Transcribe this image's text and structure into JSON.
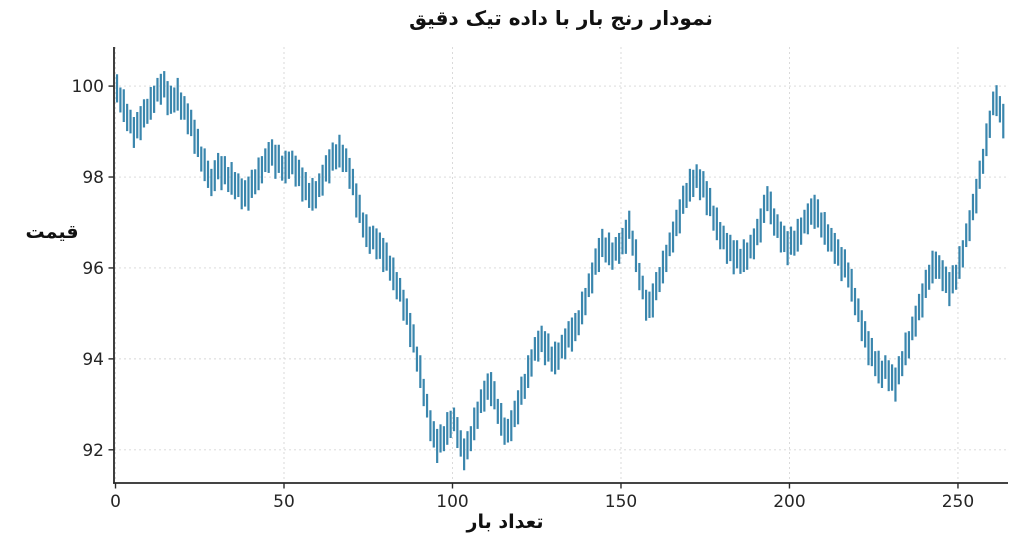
{
  "chart_data": {
    "type": "bar",
    "subtype": "high-low-range-bars",
    "title": "نمودار رنج بار با داده تیک دقیق",
    "xlabel": "تعداد بار",
    "ylabel": "قیمت",
    "bar_color": "#3a86ad",
    "axis_color": "#2a2a2a",
    "grid_color": "#d6d6d6",
    "text_color": "#252525",
    "grid": true,
    "legend": "none",
    "xlim": [
      -0.45,
      264.85
    ],
    "ylim": [
      91.27,
      100.86
    ],
    "x_ticks": [
      0,
      50,
      100,
      150,
      200,
      250
    ],
    "y_ticks": [
      92,
      94,
      96,
      98,
      100
    ],
    "bars": [
      [
        99.64,
        100.26
      ],
      [
        99.42,
        99.97
      ],
      [
        99.21,
        99.93
      ],
      [
        99.01,
        99.61
      ],
      [
        98.96,
        99.48
      ],
      [
        98.64,
        99.32
      ],
      [
        98.85,
        99.43
      ],
      [
        98.81,
        99.56
      ],
      [
        99.09,
        99.71
      ],
      [
        99.17,
        99.72
      ],
      [
        99.26,
        99.98
      ],
      [
        99.41,
        100.01
      ],
      [
        99.66,
        100.18
      ],
      [
        99.59,
        100.27
      ],
      [
        99.75,
        100.33
      ],
      [
        99.36,
        100.11
      ],
      [
        99.39,
        100.01
      ],
      [
        99.42,
        99.97
      ],
      [
        99.46,
        100.18
      ],
      [
        99.26,
        99.86
      ],
      [
        99.26,
        99.78
      ],
      [
        98.94,
        99.62
      ],
      [
        98.9,
        99.48
      ],
      [
        98.51,
        99.26
      ],
      [
        98.44,
        99.06
      ],
      [
        98.12,
        98.67
      ],
      [
        97.91,
        98.63
      ],
      [
        97.76,
        98.36
      ],
      [
        97.58,
        98.18
      ],
      [
        97.69,
        98.37
      ],
      [
        97.95,
        98.53
      ],
      [
        97.71,
        98.46
      ],
      [
        97.84,
        98.46
      ],
      [
        97.67,
        98.22
      ],
      [
        97.61,
        98.33
      ],
      [
        97.51,
        98.11
      ],
      [
        97.56,
        98.08
      ],
      [
        97.29,
        97.97
      ],
      [
        97.35,
        97.93
      ],
      [
        97.26,
        98.01
      ],
      [
        97.54,
        98.16
      ],
      [
        97.62,
        98.17
      ],
      [
        97.71,
        98.43
      ],
      [
        97.86,
        98.46
      ],
      [
        98.11,
        98.63
      ],
      [
        98.09,
        98.77
      ],
      [
        98.25,
        98.83
      ],
      [
        97.96,
        98.71
      ],
      [
        98.09,
        98.71
      ],
      [
        97.92,
        98.47
      ],
      [
        97.86,
        98.58
      ],
      [
        97.96,
        98.56
      ],
      [
        98.06,
        98.58
      ],
      [
        97.79,
        98.47
      ],
      [
        97.8,
        98.38
      ],
      [
        97.46,
        98.21
      ],
      [
        97.49,
        98.11
      ],
      [
        97.32,
        97.87
      ],
      [
        97.26,
        97.98
      ],
      [
        97.31,
        97.91
      ],
      [
        97.56,
        98.08
      ],
      [
        97.59,
        98.27
      ],
      [
        97.9,
        98.48
      ],
      [
        97.86,
        98.61
      ],
      [
        98.14,
        98.76
      ],
      [
        98.17,
        98.72
      ],
      [
        98.21,
        98.93
      ],
      [
        98.11,
        98.71
      ],
      [
        98.11,
        98.63
      ],
      [
        97.74,
        98.42
      ],
      [
        97.6,
        98.18
      ],
      [
        97.11,
        97.86
      ],
      [
        96.99,
        97.61
      ],
      [
        96.67,
        97.22
      ],
      [
        96.46,
        97.18
      ],
      [
        96.31,
        96.91
      ],
      [
        96.41,
        96.93
      ],
      [
        96.19,
        96.87
      ],
      [
        96.2,
        96.78
      ],
      [
        95.91,
        96.66
      ],
      [
        95.94,
        96.56
      ],
      [
        95.72,
        96.27
      ],
      [
        95.51,
        96.23
      ],
      [
        95.31,
        95.91
      ],
      [
        95.26,
        95.78
      ],
      [
        94.84,
        95.52
      ],
      [
        94.75,
        95.33
      ],
      [
        94.26,
        95.01
      ],
      [
        94.14,
        94.76
      ],
      [
        93.72,
        94.27
      ],
      [
        93.36,
        94.08
      ],
      [
        92.96,
        93.56
      ],
      [
        92.71,
        93.23
      ],
      [
        92.19,
        92.87
      ],
      [
        92.05,
        92.63
      ],
      [
        91.71,
        92.46
      ],
      [
        91.94,
        92.56
      ],
      [
        91.97,
        92.52
      ],
      [
        92.11,
        92.83
      ],
      [
        92.26,
        92.86
      ],
      [
        92.41,
        92.93
      ],
      [
        92.04,
        92.72
      ],
      [
        91.85,
        92.43
      ],
      [
        91.55,
        92.25
      ],
      [
        91.79,
        92.41
      ],
      [
        91.97,
        92.52
      ],
      [
        92.21,
        92.93
      ],
      [
        92.46,
        93.06
      ],
      [
        92.81,
        93.33
      ],
      [
        92.84,
        93.52
      ],
      [
        93.1,
        93.68
      ],
      [
        92.96,
        93.71
      ],
      [
        92.89,
        93.51
      ],
      [
        92.57,
        93.12
      ],
      [
        92.31,
        93.03
      ],
      [
        92.11,
        92.71
      ],
      [
        92.16,
        92.68
      ],
      [
        92.19,
        92.87
      ],
      [
        92.5,
        93.08
      ],
      [
        92.56,
        93.31
      ],
      [
        92.99,
        93.61
      ],
      [
        93.12,
        93.67
      ],
      [
        93.36,
        94.08
      ],
      [
        93.61,
        94.21
      ],
      [
        93.96,
        94.48
      ],
      [
        93.94,
        94.62
      ],
      [
        94.15,
        94.73
      ],
      [
        93.86,
        94.61
      ],
      [
        93.94,
        94.56
      ],
      [
        93.72,
        94.27
      ],
      [
        93.66,
        94.38
      ],
      [
        93.76,
        94.36
      ],
      [
        94.01,
        94.53
      ],
      [
        93.99,
        94.67
      ],
      [
        94.25,
        94.83
      ],
      [
        94.16,
        94.91
      ],
      [
        94.39,
        95.01
      ],
      [
        94.52,
        95.07
      ],
      [
        94.76,
        95.48
      ],
      [
        94.96,
        95.56
      ],
      [
        95.36,
        95.88
      ],
      [
        95.44,
        96.12
      ],
      [
        95.85,
        96.43
      ],
      [
        95.91,
        96.66
      ],
      [
        96.24,
        96.86
      ],
      [
        96.12,
        96.67
      ],
      [
        96.06,
        96.78
      ],
      [
        95.96,
        96.56
      ],
      [
        96.16,
        96.68
      ],
      [
        96.09,
        96.77
      ],
      [
        96.3,
        96.88
      ],
      [
        96.31,
        97.06
      ],
      [
        96.64,
        97.26
      ],
      [
        96.27,
        96.82
      ],
      [
        95.91,
        96.63
      ],
      [
        95.51,
        96.11
      ],
      [
        95.31,
        95.83
      ],
      [
        94.84,
        95.52
      ],
      [
        94.9,
        95.48
      ],
      [
        94.91,
        95.66
      ],
      [
        95.29,
        95.91
      ],
      [
        95.47,
        96.02
      ],
      [
        95.66,
        96.38
      ],
      [
        95.91,
        96.51
      ],
      [
        96.26,
        96.78
      ],
      [
        96.34,
        97.02
      ],
      [
        96.7,
        97.28
      ],
      [
        96.76,
        97.51
      ],
      [
        97.19,
        97.81
      ],
      [
        97.32,
        97.87
      ],
      [
        97.46,
        98.18
      ],
      [
        97.56,
        98.16
      ],
      [
        97.76,
        98.28
      ],
      [
        97.49,
        98.17
      ],
      [
        97.55,
        98.13
      ],
      [
        97.16,
        97.91
      ],
      [
        97.14,
        97.76
      ],
      [
        96.82,
        97.37
      ],
      [
        96.61,
        97.33
      ],
      [
        96.41,
        97.01
      ],
      [
        96.41,
        96.93
      ],
      [
        96.09,
        96.77
      ],
      [
        96.15,
        96.73
      ],
      [
        95.86,
        96.61
      ],
      [
        95.99,
        96.61
      ],
      [
        95.87,
        96.42
      ],
      [
        95.91,
        96.63
      ],
      [
        95.96,
        96.56
      ],
      [
        96.21,
        96.73
      ],
      [
        96.19,
        96.87
      ],
      [
        96.5,
        97.08
      ],
      [
        96.56,
        97.31
      ],
      [
        96.99,
        97.61
      ],
      [
        97.25,
        97.8
      ],
      [
        96.96,
        97.68
      ],
      [
        96.71,
        97.31
      ],
      [
        96.66,
        97.18
      ],
      [
        96.34,
        97.02
      ],
      [
        96.35,
        96.93
      ],
      [
        96.06,
        96.81
      ],
      [
        96.29,
        96.91
      ],
      [
        96.27,
        96.82
      ],
      [
        96.36,
        97.08
      ],
      [
        96.51,
        97.11
      ],
      [
        96.76,
        97.28
      ],
      [
        96.74,
        97.42
      ],
      [
        96.95,
        97.53
      ],
      [
        96.86,
        97.61
      ],
      [
        96.89,
        97.51
      ],
      [
        96.67,
        97.22
      ],
      [
        96.51,
        97.23
      ],
      [
        96.36,
        96.96
      ],
      [
        96.36,
        96.88
      ],
      [
        96.09,
        96.77
      ],
      [
        96.05,
        96.63
      ],
      [
        95.71,
        96.46
      ],
      [
        95.79,
        96.41
      ],
      [
        95.57,
        96.12
      ],
      [
        95.26,
        95.98
      ],
      [
        94.96,
        95.56
      ],
      [
        94.81,
        95.33
      ],
      [
        94.39,
        95.07
      ],
      [
        94.25,
        94.83
      ],
      [
        93.86,
        94.61
      ],
      [
        93.84,
        94.46
      ],
      [
        93.62,
        94.17
      ],
      [
        93.46,
        94.18
      ],
      [
        93.36,
        93.96
      ],
      [
        93.56,
        94.08
      ],
      [
        93.29,
        93.97
      ],
      [
        93.3,
        93.88
      ],
      [
        93.06,
        93.81
      ],
      [
        93.44,
        94.06
      ],
      [
        93.62,
        94.17
      ],
      [
        93.86,
        94.58
      ],
      [
        94.01,
        94.61
      ],
      [
        94.41,
        94.93
      ],
      [
        94.49,
        95.17
      ],
      [
        94.85,
        95.43
      ],
      [
        94.91,
        95.66
      ],
      [
        95.34,
        95.96
      ],
      [
        95.52,
        96.07
      ],
      [
        95.66,
        96.38
      ],
      [
        95.76,
        96.36
      ],
      [
        95.76,
        96.28
      ],
      [
        95.49,
        96.17
      ],
      [
        95.45,
        96.03
      ],
      [
        95.16,
        95.91
      ],
      [
        95.44,
        96.06
      ],
      [
        95.52,
        96.07
      ],
      [
        95.76,
        96.48
      ],
      [
        96.01,
        96.61
      ],
      [
        96.46,
        96.98
      ],
      [
        96.59,
        97.27
      ],
      [
        97.05,
        97.63
      ],
      [
        97.2,
        97.96
      ],
      [
        97.74,
        98.36
      ],
      [
        98.07,
        98.62
      ],
      [
        98.46,
        99.18
      ],
      [
        98.86,
        99.46
      ],
      [
        99.36,
        99.88
      ],
      [
        99.34,
        100.02
      ],
      [
        99.2,
        99.78
      ],
      [
        98.85,
        99.61
      ]
    ]
  }
}
